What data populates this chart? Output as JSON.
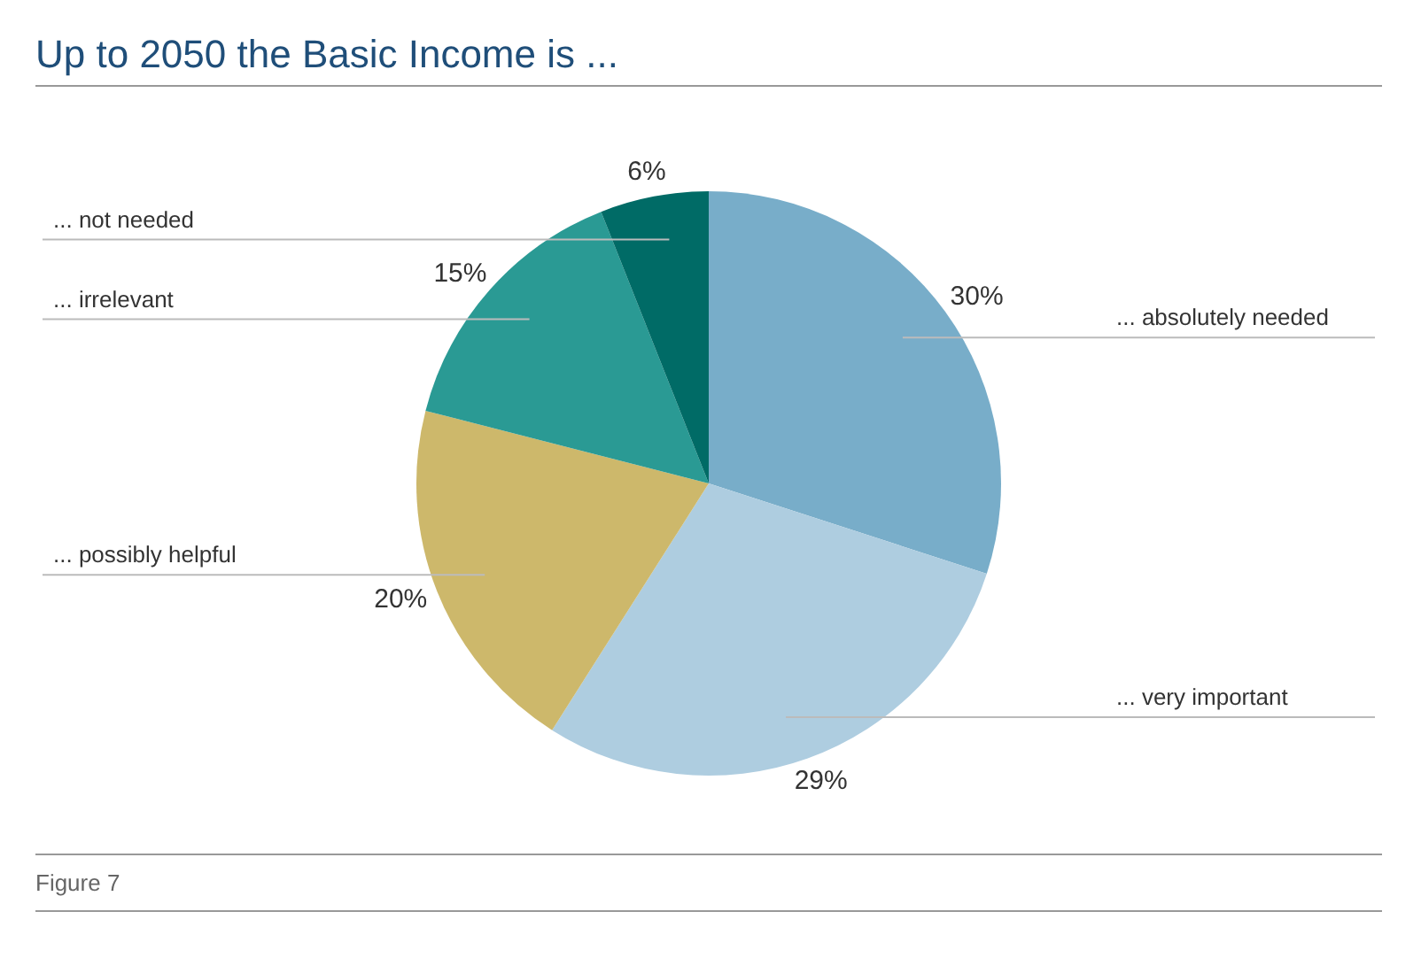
{
  "chart_data": {
    "type": "pie",
    "title": "Up to 2050 the Basic Income is ...",
    "categories": [
      "... absolutely needed",
      "... very important",
      "... possibly helpful",
      "... irrelevant",
      "... not needed"
    ],
    "values": [
      30,
      29,
      20,
      15,
      6
    ],
    "value_labels": [
      "30%",
      "29%",
      "20%",
      "15%",
      "6%"
    ],
    "colors": [
      "#78adc9",
      "#aecde0",
      "#cdb86b",
      "#2a9a94",
      "#006b66"
    ],
    "legend": false,
    "annotations": [
      "Figure 7"
    ]
  }
}
